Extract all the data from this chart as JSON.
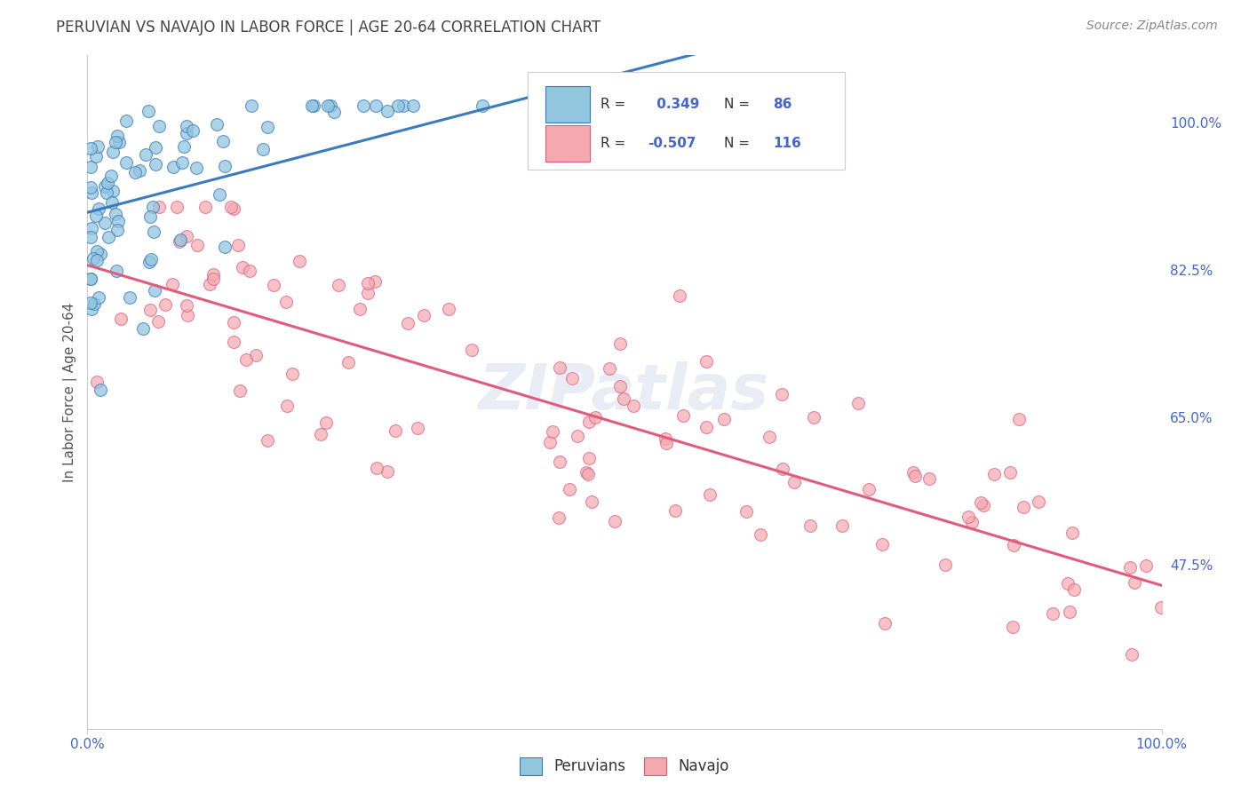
{
  "title": "PERUVIAN VS NAVAJO IN LABOR FORCE | AGE 20-64 CORRELATION CHART",
  "source": "Source: ZipAtlas.com",
  "ylabel": "In Labor Force | Age 20-64",
  "xlim": [
    0.0,
    1.0
  ],
  "ylim": [
    0.28,
    1.08
  ],
  "yticks": [
    0.475,
    0.65,
    0.825,
    1.0
  ],
  "ytick_labels": [
    "47.5%",
    "65.0%",
    "82.5%",
    "100.0%"
  ],
  "xticks": [
    0.0,
    1.0
  ],
  "xtick_labels": [
    "0.0%",
    "100.0%"
  ],
  "blue_R": 0.349,
  "blue_N": 86,
  "pink_R": -0.507,
  "pink_N": 116,
  "blue_color": "#92c5de",
  "pink_color": "#f4a9b0",
  "blue_line_color": "#3a7abf",
  "pink_line_color": "#e05c7a",
  "legend_blue_label": "Peruvians",
  "legend_pink_label": "Navajo",
  "watermark": "ZIPatlas",
  "background_color": "#ffffff",
  "grid_color": "#cccccc",
  "title_color": "#444444",
  "source_color": "#888888",
  "axis_tick_color": "#4466cc",
  "ylabel_color": "#555555"
}
